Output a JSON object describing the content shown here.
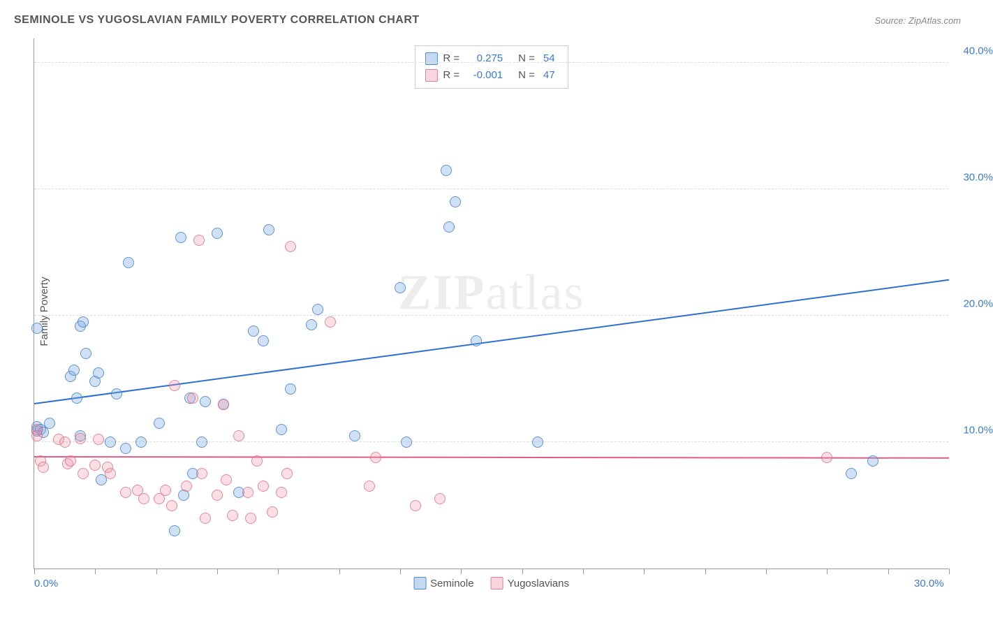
{
  "title": "SEMINOLE VS YUGOSLAVIAN FAMILY POVERTY CORRELATION CHART",
  "source": "Source: ZipAtlas.com",
  "ylabel": "Family Poverty",
  "watermark": "ZIPatlas",
  "chart": {
    "type": "scatter",
    "xlim": [
      0,
      30
    ],
    "ylim": [
      0,
      42
    ],
    "xticks": [
      0,
      2,
      4,
      6,
      8,
      10,
      12,
      14,
      16,
      18,
      20,
      22,
      24,
      26,
      28,
      30
    ],
    "yticks": [
      10,
      20,
      30,
      40
    ],
    "ytick_labels": [
      "10.0%",
      "20.0%",
      "30.0%",
      "40.0%"
    ],
    "xtick_labels": {
      "0": "0.0%",
      "30": "30.0%"
    },
    "background_color": "#ffffff",
    "grid_color": "#dddddd",
    "axis_color": "#999999",
    "marker_size": 16,
    "series": [
      {
        "name": "Seminole",
        "color_fill": "rgba(120,170,225,0.35)",
        "color_stroke": "rgba(70,130,200,0.8)",
        "r": "0.275",
        "n": "54",
        "trend": {
          "x1": 0,
          "y1": 13.0,
          "x2": 30,
          "y2": 22.8,
          "color": "#2d6fd0"
        },
        "points": [
          [
            0.1,
            19.0
          ],
          [
            0.1,
            11.2
          ],
          [
            0.1,
            10.9
          ],
          [
            0.2,
            11.0
          ],
          [
            0.3,
            10.8
          ],
          [
            0.5,
            11.5
          ],
          [
            1.2,
            15.2
          ],
          [
            1.3,
            15.7
          ],
          [
            1.4,
            13.5
          ],
          [
            1.5,
            19.2
          ],
          [
            1.5,
            10.5
          ],
          [
            1.6,
            19.5
          ],
          [
            1.7,
            17.0
          ],
          [
            2.0,
            14.8
          ],
          [
            2.1,
            15.5
          ],
          [
            2.2,
            7.0
          ],
          [
            2.5,
            10.0
          ],
          [
            2.7,
            13.8
          ],
          [
            3.0,
            9.5
          ],
          [
            3.1,
            24.2
          ],
          [
            3.5,
            10.0
          ],
          [
            4.1,
            11.5
          ],
          [
            4.6,
            3.0
          ],
          [
            4.8,
            26.2
          ],
          [
            4.9,
            5.8
          ],
          [
            5.1,
            13.5
          ],
          [
            5.2,
            7.5
          ],
          [
            5.5,
            10.0
          ],
          [
            5.6,
            13.2
          ],
          [
            6.0,
            26.5
          ],
          [
            6.2,
            13.0
          ],
          [
            6.7,
            6.0
          ],
          [
            7.2,
            18.8
          ],
          [
            7.5,
            18.0
          ],
          [
            7.7,
            26.8
          ],
          [
            8.1,
            11.0
          ],
          [
            8.4,
            14.2
          ],
          [
            9.1,
            19.3
          ],
          [
            9.3,
            20.5
          ],
          [
            10.5,
            10.5
          ],
          [
            12.0,
            22.2
          ],
          [
            12.2,
            10.0
          ],
          [
            13.6,
            27.0
          ],
          [
            13.5,
            31.5
          ],
          [
            13.8,
            29.0
          ],
          [
            14.5,
            18.0
          ],
          [
            16.5,
            10.0
          ],
          [
            26.8,
            7.5
          ],
          [
            27.5,
            8.5
          ]
        ]
      },
      {
        "name": "Yugoslavians",
        "color_fill": "rgba(240,150,170,0.30)",
        "color_stroke": "rgba(220,100,130,0.7)",
        "r": "-0.001",
        "n": "47",
        "trend": {
          "x1": 0,
          "y1": 8.8,
          "x2": 30,
          "y2": 8.7,
          "color": "#e05b85"
        },
        "points": [
          [
            0.1,
            11.0
          ],
          [
            0.1,
            10.5
          ],
          [
            0.2,
            8.5
          ],
          [
            0.3,
            8.0
          ],
          [
            0.8,
            10.2
          ],
          [
            1.0,
            10.0
          ],
          [
            1.1,
            8.3
          ],
          [
            1.2,
            8.5
          ],
          [
            1.5,
            10.3
          ],
          [
            1.6,
            7.5
          ],
          [
            2.0,
            8.2
          ],
          [
            2.1,
            10.2
          ],
          [
            2.4,
            8.0
          ],
          [
            2.5,
            7.5
          ],
          [
            3.0,
            6.0
          ],
          [
            3.4,
            6.2
          ],
          [
            3.6,
            5.5
          ],
          [
            4.1,
            5.5
          ],
          [
            4.3,
            6.2
          ],
          [
            4.5,
            5.0
          ],
          [
            4.6,
            14.5
          ],
          [
            5.0,
            6.5
          ],
          [
            5.2,
            13.5
          ],
          [
            5.4,
            26.0
          ],
          [
            5.5,
            7.5
          ],
          [
            5.6,
            4.0
          ],
          [
            6.0,
            5.8
          ],
          [
            6.2,
            13.0
          ],
          [
            6.3,
            7.0
          ],
          [
            6.5,
            4.2
          ],
          [
            6.7,
            10.5
          ],
          [
            7.0,
            6.0
          ],
          [
            7.1,
            4.0
          ],
          [
            7.3,
            8.5
          ],
          [
            7.5,
            6.5
          ],
          [
            7.8,
            4.5
          ],
          [
            8.1,
            6.0
          ],
          [
            8.3,
            7.5
          ],
          [
            8.4,
            25.5
          ],
          [
            9.7,
            19.5
          ],
          [
            11.0,
            6.5
          ],
          [
            11.2,
            8.8
          ],
          [
            12.5,
            5.0
          ],
          [
            13.3,
            5.5
          ],
          [
            26.0,
            8.8
          ]
        ]
      }
    ],
    "legend_bottom": [
      "Seminole",
      "Yugoslavians"
    ],
    "legend_top_labels": {
      "r": "R =",
      "n": "N ="
    }
  }
}
